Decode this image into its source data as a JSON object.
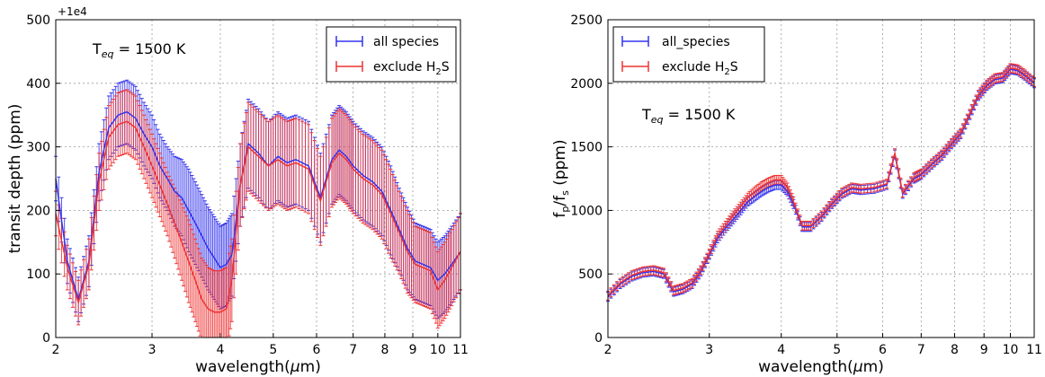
{
  "chart_data": [
    {
      "type": "line",
      "xscale": "log",
      "xlim": [
        2,
        11
      ],
      "ylim": [
        0,
        500
      ],
      "xticks": [
        2,
        3,
        4,
        5,
        6,
        7,
        8,
        9,
        10,
        11
      ],
      "xtick_labels": [
        "2",
        "3",
        "4",
        "5",
        "6",
        "7",
        "8",
        "9",
        "10",
        "11"
      ],
      "yticks": [
        0,
        100,
        200,
        300,
        400,
        500
      ],
      "ytick_labels": [
        "0",
        "100",
        "200",
        "300",
        "400",
        "500"
      ],
      "offset_text": "+1e4",
      "xlabel_pre": "wavelength(",
      "xlabel_sym": "μ",
      "xlabel_post": "m)",
      "ylabel": "transit depth (ppm)",
      "annotation": {
        "base": "T",
        "sub": "eq",
        "rest": " = 1500 K"
      },
      "grid": true,
      "legend_position": "top-right",
      "x": [
        2.0,
        2.1,
        2.2,
        2.3,
        2.4,
        2.5,
        2.6,
        2.7,
        2.8,
        2.9,
        3.0,
        3.1,
        3.2,
        3.3,
        3.4,
        3.5,
        3.6,
        3.7,
        3.8,
        3.9,
        4.0,
        4.1,
        4.2,
        4.35,
        4.5,
        4.7,
        4.9,
        5.1,
        5.3,
        5.5,
        5.8,
        6.1,
        6.4,
        6.6,
        6.8,
        7.0,
        7.3,
        7.6,
        7.9,
        8.2,
        8.5,
        8.8,
        9.1,
        9.4,
        9.7,
        10.0,
        10.3,
        10.6,
        11.0
      ],
      "series": [
        {
          "name": "all species",
          "color": "#3333ee",
          "y": [
            250,
            120,
            60,
            120,
            260,
            330,
            350,
            355,
            345,
            320,
            300,
            270,
            250,
            230,
            220,
            200,
            180,
            160,
            140,
            125,
            110,
            115,
            130,
            240,
            305,
            290,
            270,
            285,
            275,
            280,
            270,
            220,
            280,
            295,
            285,
            270,
            255,
            245,
            230,
            200,
            170,
            140,
            120,
            115,
            110,
            90,
            100,
            115,
            135
          ],
          "err": [
            35,
            35,
            35,
            40,
            45,
            50,
            50,
            50,
            50,
            50,
            50,
            50,
            50,
            55,
            60,
            65,
            65,
            65,
            65,
            65,
            65,
            65,
            65,
            65,
            70,
            70,
            70,
            70,
            70,
            70,
            70,
            70,
            70,
            70,
            70,
            70,
            70,
            70,
            70,
            70,
            65,
            65,
            60,
            60,
            60,
            60,
            60,
            60,
            60
          ]
        },
        {
          "name": "exclude H2S",
          "name_pre": "exclude H",
          "name_sub": "2",
          "name_post": "S",
          "color": "#ee3333",
          "y": [
            195,
            110,
            55,
            115,
            245,
            315,
            335,
            340,
            330,
            300,
            270,
            240,
            210,
            180,
            150,
            120,
            90,
            60,
            45,
            40,
            40,
            45,
            90,
            240,
            300,
            285,
            270,
            280,
            270,
            275,
            265,
            215,
            275,
            290,
            280,
            265,
            250,
            240,
            225,
            195,
            165,
            135,
            115,
            110,
            105,
            75,
            90,
            110,
            135
          ],
          "err": [
            35,
            35,
            35,
            40,
            45,
            50,
            50,
            50,
            50,
            50,
            50,
            50,
            50,
            55,
            60,
            65,
            65,
            65,
            65,
            65,
            65,
            65,
            65,
            65,
            70,
            70,
            70,
            70,
            70,
            70,
            70,
            70,
            70,
            70,
            70,
            70,
            70,
            70,
            70,
            70,
            65,
            65,
            60,
            60,
            60,
            60,
            60,
            60,
            60
          ]
        }
      ]
    },
    {
      "type": "line",
      "xscale": "log",
      "xlim": [
        2,
        11
      ],
      "ylim": [
        0,
        2500
      ],
      "xticks": [
        2,
        3,
        4,
        5,
        6,
        7,
        8,
        9,
        10,
        11
      ],
      "xtick_labels": [
        "2",
        "3",
        "4",
        "5",
        "6",
        "7",
        "8",
        "9",
        "10",
        "11"
      ],
      "yticks": [
        0,
        500,
        1000,
        1500,
        2000,
        2500
      ],
      "ytick_labels": [
        "0",
        "500",
        "1000",
        "1500",
        "2000",
        "2500"
      ],
      "xlabel_pre": "wavelength(",
      "xlabel_sym": "μ",
      "xlabel_post": "m)",
      "ylabel": {
        "f1": "f",
        "s1": "p",
        "mid": "/f",
        "s2": "s",
        "rest": " (ppm)"
      },
      "annotation": {
        "base": "T",
        "sub": "eq",
        "rest": " = 1500 K"
      },
      "grid": true,
      "legend_position": "top-left",
      "x": [
        2.0,
        2.1,
        2.2,
        2.3,
        2.4,
        2.5,
        2.6,
        2.7,
        2.8,
        2.9,
        3.0,
        3.1,
        3.2,
        3.3,
        3.4,
        3.5,
        3.6,
        3.7,
        3.8,
        3.9,
        4.0,
        4.1,
        4.2,
        4.35,
        4.5,
        4.7,
        4.9,
        5.1,
        5.3,
        5.5,
        5.8,
        6.1,
        6.3,
        6.5,
        6.8,
        7.0,
        7.3,
        7.6,
        7.9,
        8.2,
        8.5,
        8.8,
        9.1,
        9.4,
        9.7,
        10.0,
        10.3,
        10.6,
        11.0
      ],
      "series": [
        {
          "name": "all_species",
          "color": "#3333ee",
          "y": [
            320,
            420,
            480,
            510,
            520,
            500,
            360,
            380,
            420,
            520,
            650,
            780,
            860,
            930,
            1000,
            1070,
            1110,
            1150,
            1180,
            1200,
            1200,
            1150,
            1050,
            870,
            870,
            950,
            1050,
            1130,
            1170,
            1160,
            1170,
            1200,
            1440,
            1130,
            1250,
            1280,
            1360,
            1430,
            1520,
            1600,
            1750,
            1900,
            1980,
            2030,
            2040,
            2110,
            2100,
            2060,
            2000
          ]
        },
        {
          "name": "exclude H2S",
          "name_pre": "exclude H",
          "name_sub": "2",
          "name_post": "S",
          "color": "#ee3333",
          "y": [
            330,
            430,
            490,
            520,
            530,
            510,
            370,
            390,
            430,
            530,
            660,
            800,
            880,
            960,
            1030,
            1100,
            1150,
            1190,
            1220,
            1240,
            1240,
            1180,
            1070,
            880,
            880,
            960,
            1060,
            1140,
            1180,
            1170,
            1180,
            1210,
            1450,
            1140,
            1260,
            1290,
            1370,
            1440,
            1530,
            1610,
            1760,
            1910,
            1990,
            2040,
            2050,
            2120,
            2110,
            2070,
            2010
          ]
        }
      ],
      "err": 35
    }
  ]
}
